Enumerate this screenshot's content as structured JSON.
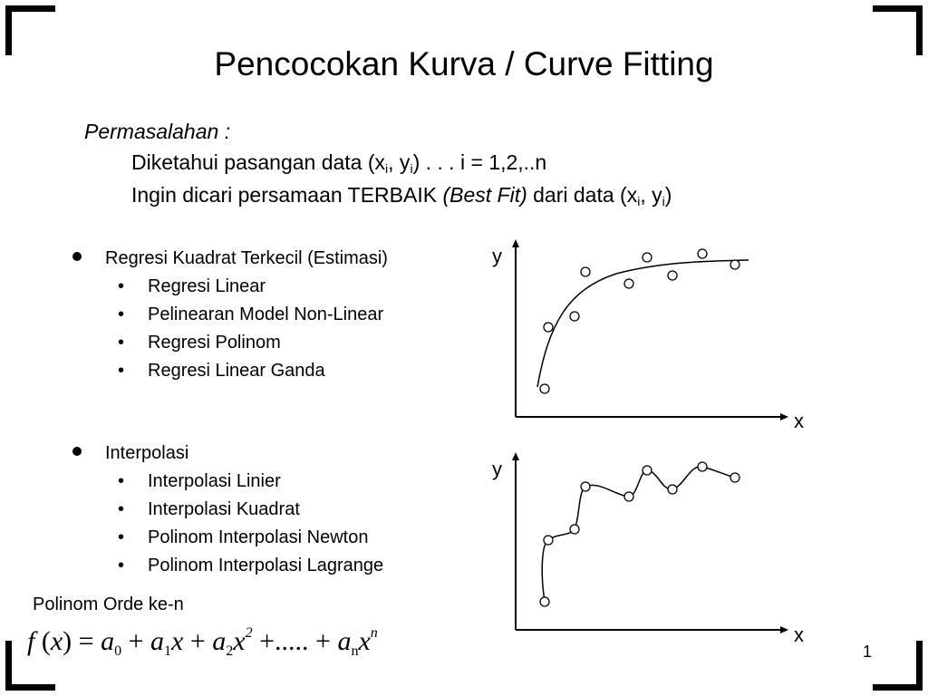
{
  "title": "Pencocokan Kurva / Curve Fitting",
  "problem": {
    "heading": "Permasalahan :",
    "line1": {
      "prefix": "Diketahui pasangan data (x",
      "sub1": "i",
      "mid": ", y",
      "sub2": "i",
      "suffix": ") . . . i = 1,2,..n"
    },
    "line2": {
      "prefix": "Ingin dicari persamaan TERBAIK ",
      "italic": "(Best Fit)",
      "mid": " dari data (x",
      "sub1": "i",
      "mid2": ", y",
      "sub2": "i",
      "suffix": ")"
    }
  },
  "sections": [
    {
      "label": "Regresi Kuadrat Terkecil (Estimasi)",
      "items": [
        "Regresi Linear",
        "Pelinearan Model Non-Linear",
        "Regresi Polinom",
        "Regresi Linear Ganda"
      ]
    },
    {
      "label": "Interpolasi",
      "items": [
        "Interpolasi Linier",
        "Interpolasi Kuadrat",
        "Polinom Interpolasi Newton",
        "Polinom Interpolasi Lagrange"
      ]
    }
  ],
  "bullet_glyph": "•",
  "polinom_label": "Polinom Orde ke-n",
  "formula": {
    "f": "f",
    "open": " (",
    "x": "x",
    "close": ") = ",
    "a": "a",
    "sub0": "0",
    "plus": " + ",
    "sub1": "1",
    "sub2": "2",
    "sup2": "2",
    "dots": " +..... + ",
    "subn": "n",
    "supn": "n"
  },
  "charts": {
    "top": {
      "ylabel": "y",
      "xlabel": "x"
    },
    "bottom": {
      "ylabel": "y",
      "xlabel": "x"
    }
  },
  "page_number": "1"
}
